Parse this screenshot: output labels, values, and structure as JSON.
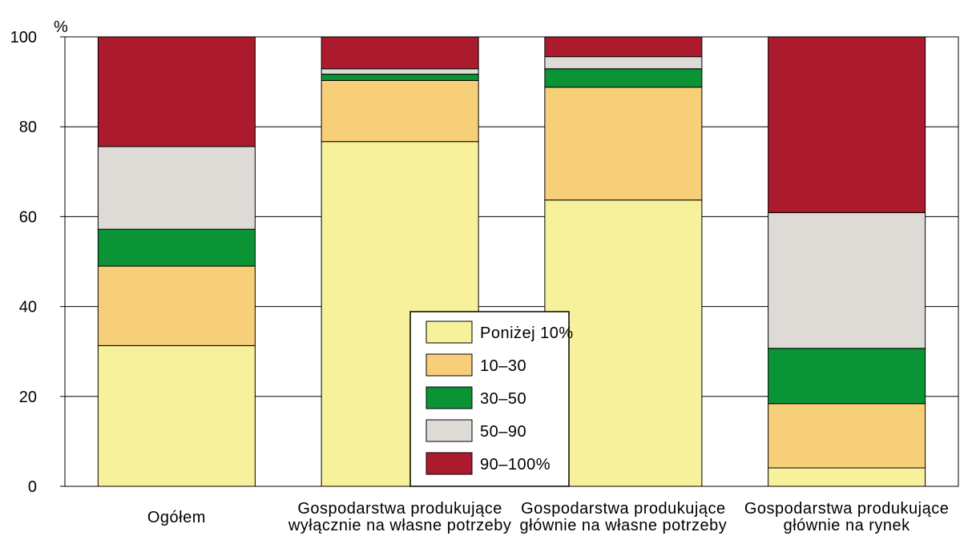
{
  "chart_data": {
    "type": "bar",
    "stacked": true,
    "ylabel": "%",
    "ylim": [
      0,
      100
    ],
    "yticks": [
      0,
      20,
      40,
      60,
      80,
      100
    ],
    "grid": true,
    "legend_position": "center-bottom",
    "categories": [
      [
        "Ogółem"
      ],
      [
        "Gospodarstwa produkujące",
        "wyłącznie na własne potrzeby"
      ],
      [
        "Gospodarstwa produkujące",
        "głównie na własne potrzeby"
      ],
      [
        "Gospodarstwa produkujące",
        "głównie na rynek"
      ]
    ],
    "series": [
      {
        "name": "Poniżej 10%",
        "color": "#f7f19c",
        "values": [
          31.3,
          76.7,
          63.7,
          4.1
        ]
      },
      {
        "name": "10–30",
        "color": "#f7cf78",
        "values": [
          17.7,
          13.6,
          25.1,
          14.3
        ]
      },
      {
        "name": "30–50",
        "color": "#0a9436",
        "values": [
          8.2,
          1.4,
          4.1,
          12.3
        ]
      },
      {
        "name": "50–90",
        "color": "#dedbd6",
        "values": [
          18.4,
          1.2,
          2.7,
          30.2
        ]
      },
      {
        "name": "90–100%",
        "color": "#ab1b2d",
        "values": [
          24.4,
          7.1,
          4.4,
          39.1
        ]
      }
    ]
  }
}
